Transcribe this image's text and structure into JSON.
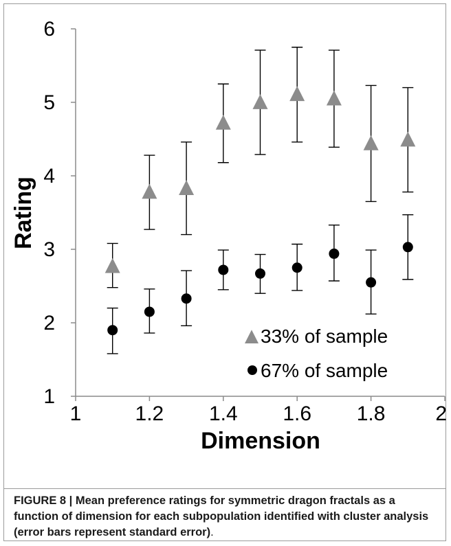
{
  "chart_data": {
    "type": "scatter",
    "xlabel": "Dimension",
    "ylabel": "Rating",
    "xlim": [
      1,
      2
    ],
    "ylim": [
      1,
      6
    ],
    "xticks": [
      1,
      1.2,
      1.4,
      1.6,
      1.8,
      2
    ],
    "xtick_labels": [
      "1",
      "1.2",
      "1.4",
      "1.6",
      "1.8",
      "2"
    ],
    "yticks": [
      1,
      2,
      3,
      4,
      5,
      6
    ],
    "ytick_labels": [
      "1",
      "2",
      "3",
      "4",
      "5",
      "6"
    ],
    "grid": false,
    "legend_position": "bottom-right",
    "series": [
      {
        "name": "33% of sample",
        "marker": "triangle",
        "color": "#8c8c8c",
        "x": [
          1.1,
          1.2,
          1.3,
          1.4,
          1.5,
          1.6,
          1.7,
          1.8,
          1.9
        ],
        "y": [
          2.76,
          3.77,
          3.82,
          4.71,
          4.99,
          5.1,
          5.04,
          4.43,
          4.48
        ],
        "err_low": [
          2.48,
          3.27,
          3.2,
          4.18,
          4.29,
          4.46,
          4.39,
          3.65,
          3.78
        ],
        "err_high": [
          3.08,
          4.28,
          4.46,
          5.25,
          5.71,
          5.75,
          5.71,
          5.23,
          5.2
        ]
      },
      {
        "name": "67% of sample",
        "marker": "circle",
        "color": "#000000",
        "x": [
          1.1,
          1.2,
          1.3,
          1.4,
          1.5,
          1.6,
          1.7,
          1.8,
          1.9
        ],
        "y": [
          1.9,
          2.15,
          2.33,
          2.72,
          2.67,
          2.75,
          2.94,
          2.55,
          3.03
        ],
        "err_low": [
          1.58,
          1.86,
          1.96,
          2.45,
          2.4,
          2.44,
          2.57,
          2.12,
          2.59
        ],
        "err_high": [
          2.2,
          2.46,
          2.71,
          2.99,
          2.93,
          3.07,
          3.33,
          2.99,
          3.47
        ]
      }
    ]
  },
  "caption": {
    "label": "FIGURE 8 |",
    "text": "Mean preference ratings for symmetric dragon fractals as a function of dimension for each subpopulation identified with cluster analysis (error bars represent standard error)",
    "end": "."
  }
}
